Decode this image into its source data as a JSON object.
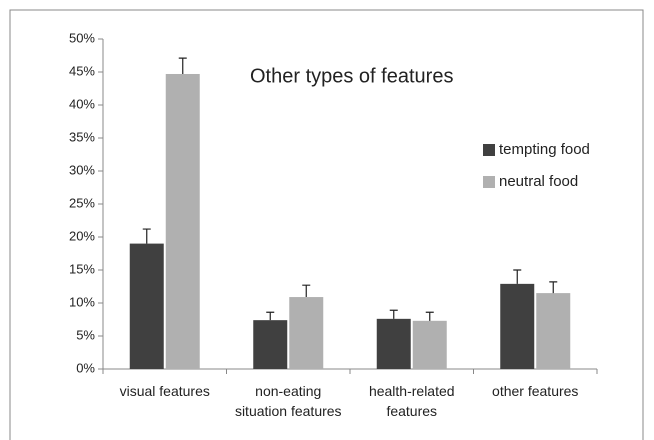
{
  "chart_data": {
    "type": "bar",
    "title": "Other types of features",
    "categories": [
      "visual features",
      "non-eating situation features",
      "health-related features",
      "other features"
    ],
    "series": [
      {
        "name": "tempting food",
        "color": "#404040",
        "values": [
          19,
          7.4,
          7.6,
          12.9
        ],
        "errors": [
          2.2,
          1.2,
          1.3,
          2.1
        ]
      },
      {
        "name": "neutral food",
        "color": "#b0b0b0",
        "values": [
          44.7,
          10.9,
          7.3,
          11.5
        ],
        "errors": [
          2.4,
          1.8,
          1.3,
          1.7
        ]
      }
    ],
    "ylim": [
      0,
      50
    ],
    "yticks": [
      {
        "value": 0,
        "label": "0%"
      },
      {
        "value": 5,
        "label": "5%"
      },
      {
        "value": 10,
        "label": "10%"
      },
      {
        "value": 15,
        "label": "15%"
      },
      {
        "value": 20,
        "label": "20%"
      },
      {
        "value": 25,
        "label": "25%"
      },
      {
        "value": 30,
        "label": "30%"
      },
      {
        "value": 35,
        "label": "35%"
      },
      {
        "value": 40,
        "label": "40%"
      },
      {
        "value": 45,
        "label": "45%"
      },
      {
        "value": 50,
        "label": "50%"
      }
    ],
    "grid": false,
    "legend": "right"
  }
}
